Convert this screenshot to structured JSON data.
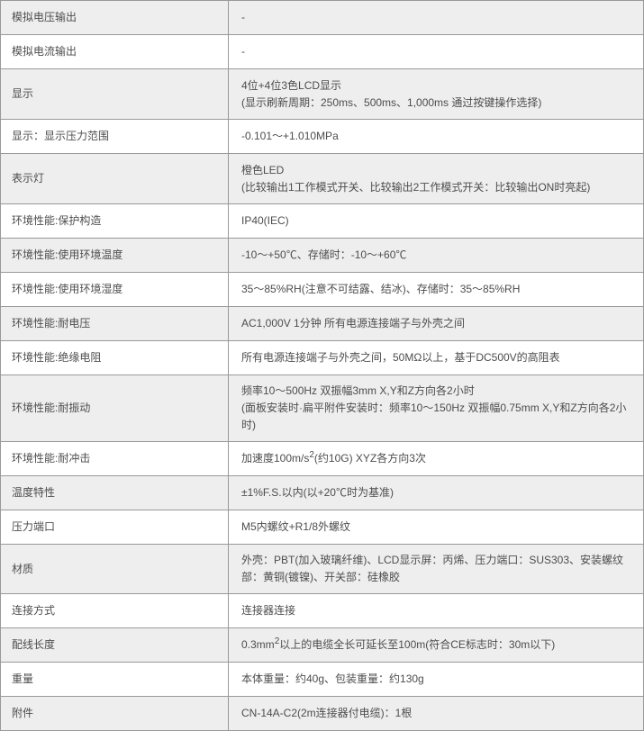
{
  "colors": {
    "row_alt_bg": "#eeeeee",
    "row_bg": "#ffffff",
    "border": "#999999",
    "text": "#4d4d4d"
  },
  "table": {
    "rows": [
      {
        "label": "模拟电压输出",
        "value_lines": [
          "-"
        ]
      },
      {
        "label": "模拟电流输出",
        "value_lines": [
          "-"
        ]
      },
      {
        "label": "显示",
        "value_lines": [
          "4位+4位3色LCD显示",
          "(显示刷新周期：250ms、500ms、1,000ms 通过按键操作选择)"
        ]
      },
      {
        "label": "显示：显示压力范围",
        "value_lines": [
          "-0.101～+1.010MPa"
        ]
      },
      {
        "label": "表示灯",
        "value_lines": [
          "橙色LED",
          "(比较输出1工作模式开关、比较输出2工作模式开关：比较输出ON时亮起)"
        ]
      },
      {
        "label": "环境性能:保护构造",
        "value_lines": [
          "IP40(IEC)"
        ]
      },
      {
        "label": "环境性能:使用环境温度",
        "value_lines": [
          "-10～+50℃、存储时：-10～+60℃"
        ]
      },
      {
        "label": "环境性能:使用环境湿度",
        "value_lines": [
          "35～85%RH(注意不可结露、结冰)、存储时：35～85%RH"
        ]
      },
      {
        "label": "环境性能:耐电压",
        "value_lines": [
          "AC1,000V 1分钟 所有电源连接端子与外壳之间"
        ]
      },
      {
        "label": "环境性能:绝缘电阻",
        "value_lines": [
          "所有电源连接端子与外壳之间，50MΩ以上，基于DC500V的高阻表"
        ]
      },
      {
        "label": "环境性能:耐振动",
        "value_lines": [
          "频率10～500Hz 双振幅3mm X,Y和Z方向各2小时",
          "(面板安装时·扁平附件安装时：频率10～150Hz 双振幅0.75mm X,Y和Z方向各2小时)"
        ]
      },
      {
        "label": "环境性能:耐冲击",
        "value_lines": [
          "加速度100m/s²(约10G) XYZ各方向3次"
        ]
      },
      {
        "label": "温度特性",
        "value_lines": [
          "±1%F.S.以内(以+20℃时为基准)"
        ]
      },
      {
        "label": "压力端口",
        "value_lines": [
          "M5内螺纹+R1/8外螺纹"
        ]
      },
      {
        "label": "材质",
        "value_lines": [
          "外壳：PBT(加入玻璃纤维)、LCD显示屏：丙烯、压力端口：SUS303、安装螺纹部：黄铜(镀镍)、开关部：硅橡胶"
        ]
      },
      {
        "label": "连接方式",
        "value_lines": [
          "连接器连接"
        ]
      },
      {
        "label": "配线长度",
        "value_lines": [
          "0.3mm²以上的电缆全长可延长至100m(符合CE标志时：30m以下)"
        ]
      },
      {
        "label": "重量",
        "value_lines": [
          "本体重量：约40g、包装重量：约130g"
        ]
      },
      {
        "label": "附件",
        "value_lines": [
          "CN-14A-C2(2m连接器付电缆)：1根"
        ]
      }
    ]
  }
}
